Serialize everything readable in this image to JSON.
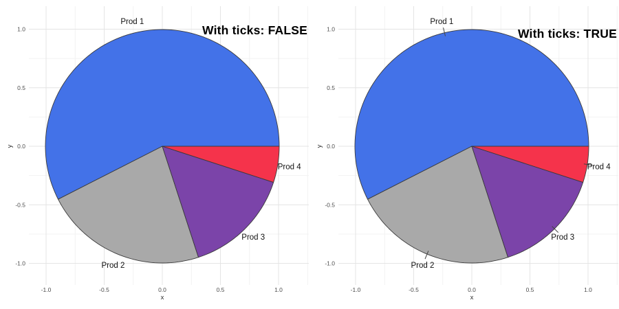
{
  "chart_data": [
    {
      "type": "pie",
      "title": "With ticks: FALSE",
      "labels": [
        "Prod 1",
        "Prod 2",
        "Prod 3",
        "Prod 4"
      ],
      "values_percent": [
        57.5,
        22.5,
        15.0,
        5.0
      ],
      "colors": [
        "#4372E8",
        "#A9A9A9",
        "#7B44A9",
        "#F5334B"
      ],
      "slice_outline_color": "#3A3A3A",
      "start_angle_deg": 0,
      "direction": "counterclockwise",
      "label_ticks": false,
      "xlabel": "x",
      "ylabel": "y",
      "x_ticks": [
        -1.0,
        -0.5,
        0.0,
        0.5,
        1.0
      ],
      "y_ticks": [
        1.0,
        0.5,
        0.0,
        -0.5,
        -1.0
      ],
      "x_tick_labels": [
        "-1.0",
        "-0.5",
        "0.0",
        "0.5",
        "1.0"
      ],
      "y_tick_labels": [
        "1.0",
        "0.5",
        "0.0",
        "-0.5",
        "-1.0"
      ],
      "xlim": [
        -1.15,
        1.26
      ],
      "ylim": [
        -1.19,
        1.19
      ],
      "grid": true,
      "legend": false
    },
    {
      "type": "pie",
      "title": "With ticks: TRUE",
      "labels": [
        "Prod 1",
        "Prod 2",
        "Prod 3",
        "Prod 4"
      ],
      "values_percent": [
        57.5,
        22.5,
        15.0,
        5.0
      ],
      "colors": [
        "#4372E8",
        "#A9A9A9",
        "#7B44A9",
        "#F5334B"
      ],
      "slice_outline_color": "#3A3A3A",
      "start_angle_deg": 0,
      "direction": "counterclockwise",
      "label_ticks": true,
      "xlabel": "x",
      "ylabel": "y",
      "x_ticks": [
        -1.0,
        -0.5,
        0.0,
        0.5,
        1.0
      ],
      "y_ticks": [
        1.0,
        0.5,
        0.0,
        -0.5,
        -1.0
      ],
      "x_tick_labels": [
        "-1.0",
        "-0.5",
        "0.0",
        "0.5",
        "1.0"
      ],
      "y_tick_labels": [
        "1.0",
        "0.5",
        "0.0",
        "-0.5",
        "-1.0"
      ],
      "xlim": [
        -1.15,
        1.26
      ],
      "ylim": [
        -1.19,
        1.19
      ],
      "grid": true,
      "legend": false
    }
  ],
  "style": {
    "grid_major_color": "#E4E4E4",
    "grid_minor_color": "#F2F2F2",
    "tick_label_color": "#4D4D4D",
    "axis_title_color": "#2B2B2B",
    "slice_label_color": "#111111",
    "leader_tick_color": "#444444",
    "background": "#FFFFFF"
  }
}
